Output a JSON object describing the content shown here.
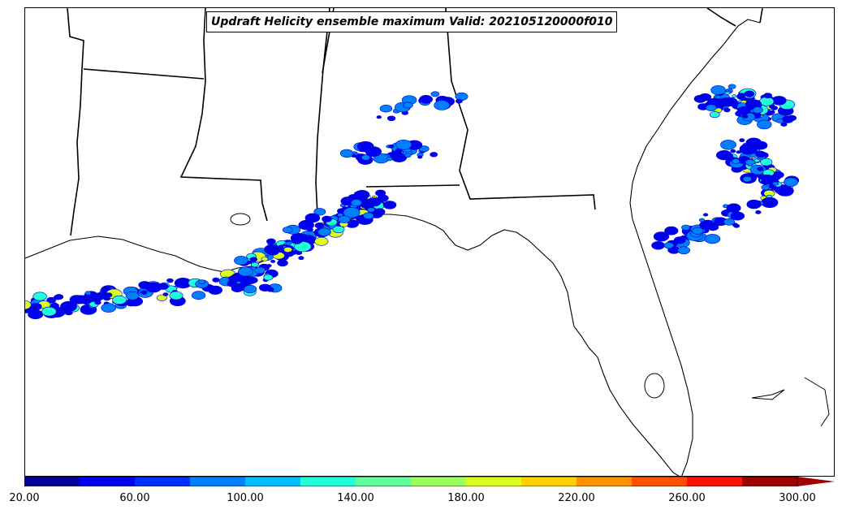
{
  "title": "Updraft Helicity ensemble maximum Valid: 202105120000f010",
  "colorbar": {
    "tick_labels": [
      "20.00",
      "60.00",
      "100.00",
      "140.00",
      "180.00",
      "220.00",
      "260.00",
      "300.00"
    ],
    "colors": [
      "#00009c",
      "#0000f0",
      "#0030ff",
      "#0080ff",
      "#00bfff",
      "#20ffd8",
      "#60ff9c",
      "#9cff60",
      "#d8ff20",
      "#ffd000",
      "#ff9000",
      "#ff5000",
      "#ff1000",
      "#a00000"
    ],
    "extend": "max"
  }
}
